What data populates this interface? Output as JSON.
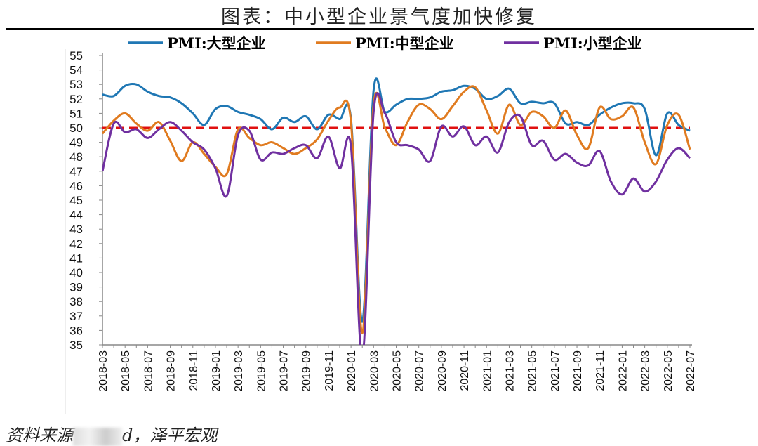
{
  "title": "图表：中小型企业景气度加快修复",
  "source": {
    "prefix": "资料来源",
    "suffix": "d，泽平宏观",
    "full": "资料来源：Wind，泽平宏观"
  },
  "chart_data": {
    "type": "line",
    "title": "图表：中小型企业景气度加快修复",
    "xlabel": "",
    "ylabel": "",
    "ylim": [
      35,
      55
    ],
    "yticks": [
      35,
      36,
      37,
      38,
      39,
      40,
      41,
      42,
      43,
      44,
      45,
      46,
      47,
      48,
      49,
      50,
      51,
      52,
      53,
      54,
      55
    ],
    "legend_position": "top",
    "x": [
      "2018-03",
      "2018-04",
      "2018-05",
      "2018-06",
      "2018-07",
      "2018-08",
      "2018-09",
      "2018-10",
      "2018-11",
      "2018-12",
      "2019-01",
      "2019-02",
      "2019-03",
      "2019-04",
      "2019-05",
      "2019-06",
      "2019-07",
      "2019-08",
      "2019-09",
      "2019-10",
      "2019-11",
      "2019-12",
      "2020-01",
      "2020-02",
      "2020-03",
      "2020-04",
      "2020-05",
      "2020-06",
      "2020-07",
      "2020-08",
      "2020-09",
      "2020-10",
      "2020-11",
      "2020-12",
      "2021-01",
      "2021-02",
      "2021-03",
      "2021-04",
      "2021-05",
      "2021-06",
      "2021-07",
      "2021-08",
      "2021-09",
      "2021-10",
      "2021-11",
      "2021-12",
      "2022-01",
      "2022-02",
      "2022-03",
      "2022-04",
      "2022-05",
      "2022-06",
      "2022-07"
    ],
    "series": [
      {
        "name": "PMI:大型企业",
        "color": "#1f77b4",
        "values": [
          52.3,
          52.2,
          52.9,
          53.0,
          52.5,
          52.2,
          52.1,
          51.7,
          51.0,
          50.2,
          51.3,
          51.5,
          51.1,
          50.9,
          50.6,
          49.9,
          50.7,
          50.4,
          50.8,
          49.9,
          50.9,
          50.6,
          50.6,
          36.6,
          52.6,
          51.1,
          51.6,
          52.0,
          52.0,
          52.1,
          52.5,
          52.6,
          52.9,
          52.7,
          52.0,
          52.2,
          52.7,
          51.7,
          51.8,
          51.7,
          51.7,
          50.3,
          50.4,
          50.2,
          50.9,
          51.4,
          51.7,
          51.7,
          51.3,
          48.1,
          51.0,
          50.2,
          49.8
        ]
      },
      {
        "name": "PMI:中型企业",
        "color": "#e07b20",
        "values": [
          49.6,
          50.5,
          51.0,
          50.3,
          49.8,
          50.4,
          49.1,
          47.7,
          49.0,
          48.2,
          47.3,
          46.8,
          49.9,
          49.3,
          48.8,
          49.0,
          48.6,
          48.2,
          48.6,
          49.2,
          50.5,
          51.4,
          50.4,
          35.8,
          51.6,
          50.0,
          48.8,
          50.4,
          51.6,
          51.3,
          50.6,
          51.5,
          52.5,
          52.8,
          51.2,
          49.6,
          51.6,
          50.2,
          51.1,
          50.8,
          50.0,
          51.2,
          49.5,
          48.6,
          51.4,
          50.6,
          50.8,
          51.4,
          49.0,
          47.5,
          50.2,
          50.9,
          48.5
        ]
      },
      {
        "name": "PMI:小型企业",
        "color": "#7030a0",
        "values": [
          47.0,
          50.3,
          49.7,
          49.9,
          49.3,
          49.9,
          50.4,
          49.8,
          49.0,
          48.5,
          47.2,
          45.3,
          49.5,
          49.8,
          47.8,
          48.3,
          48.2,
          48.6,
          48.8,
          47.9,
          49.4,
          47.2,
          48.7,
          34.1,
          51.1,
          51.0,
          49.0,
          48.8,
          48.5,
          47.7,
          50.1,
          49.4,
          50.1,
          48.8,
          49.4,
          48.3,
          50.4,
          50.8,
          48.8,
          49.1,
          47.8,
          48.2,
          47.6,
          47.4,
          48.4,
          46.3,
          45.4,
          46.5,
          45.6,
          46.3,
          47.8,
          48.6,
          47.9
        ]
      }
    ],
    "reference_line": {
      "value": 50,
      "color": "#e01010",
      "style": "dashed"
    }
  }
}
